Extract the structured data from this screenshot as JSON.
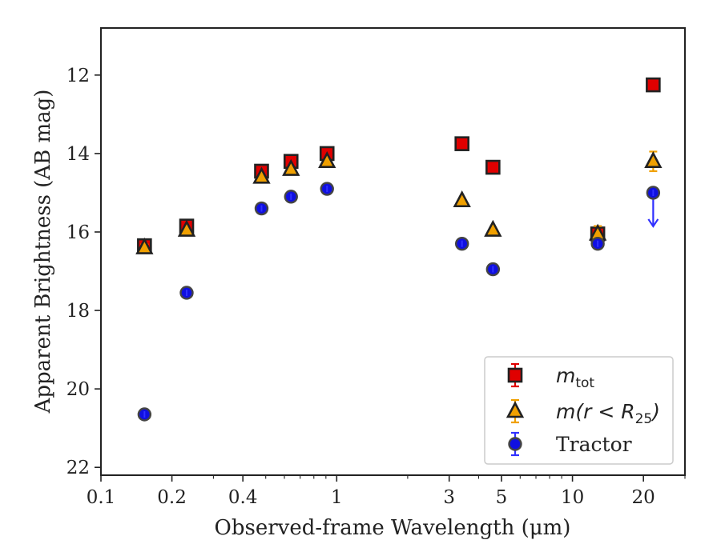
{
  "chart_data": {
    "type": "scatter",
    "xlabel": "Observed-frame Wavelength (μm)",
    "ylabel": "Apparent Brightness (AB mag)",
    "x_scale": "log",
    "xlim": [
      0.1,
      30
    ],
    "ylim": [
      22.2,
      10.8
    ],
    "y_inverted": true,
    "x_ticks": [
      0.1,
      0.2,
      0.4,
      1,
      3,
      5,
      10,
      20
    ],
    "x_tick_labels": [
      "0.1",
      "0.2",
      "0.4",
      "1",
      "3",
      "5",
      "10",
      "20"
    ],
    "y_ticks": [
      12,
      14,
      16,
      18,
      20,
      22
    ],
    "y_tick_labels": [
      "12",
      "14",
      "16",
      "18",
      "20",
      "22"
    ],
    "grid": false,
    "legend_position": "bottom-right",
    "series": [
      {
        "name": "m_tot",
        "name_main": "m",
        "name_sub": "tot",
        "marker": "square",
        "color": "#e00000",
        "edge_color": "#222222",
        "x": [
          0.153,
          0.231,
          0.48,
          0.64,
          0.91,
          3.4,
          4.6,
          12.8,
          22.0
        ],
        "y": [
          16.35,
          15.85,
          14.45,
          14.2,
          14.0,
          13.75,
          14.35,
          16.05,
          12.25
        ],
        "yerr": [
          0.08,
          0.05,
          0.05,
          0.05,
          0.05,
          0.03,
          0.03,
          0.2,
          0.05
        ]
      },
      {
        "name": "m(r < R_25)",
        "name_main": "m(r < R",
        "name_sub": "25",
        "name_tail": ")",
        "marker": "triangle",
        "color": "#f0a000",
        "edge_color": "#222222",
        "x": [
          0.153,
          0.231,
          0.48,
          0.64,
          0.91,
          3.4,
          4.6,
          12.8,
          22.0
        ],
        "y": [
          16.4,
          15.95,
          14.6,
          14.4,
          14.2,
          15.2,
          15.95,
          16.05,
          14.2
        ],
        "yerr": [
          0.08,
          0.05,
          0.05,
          0.05,
          0.05,
          0.03,
          0.03,
          0.2,
          0.25
        ]
      },
      {
        "name": "Tractor",
        "marker": "circle",
        "color": "#1010e0",
        "edge_color": "#444444",
        "x": [
          0.153,
          0.231,
          0.48,
          0.64,
          0.91,
          3.4,
          4.6,
          12.8,
          22.0
        ],
        "y": [
          20.65,
          17.55,
          15.4,
          15.1,
          14.9,
          16.3,
          16.95,
          16.3,
          15.0
        ],
        "yerr": [
          0.1,
          0.06,
          0.05,
          0.05,
          0.05,
          0.03,
          0.03,
          0.05,
          0.0
        ],
        "upper_limit": [
          false,
          false,
          false,
          false,
          false,
          false,
          false,
          false,
          true
        ]
      }
    ]
  }
}
